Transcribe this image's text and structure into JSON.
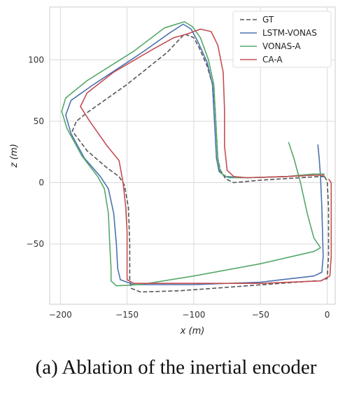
{
  "caption": "(a) Ablation of the inertial encoder",
  "chart_data": {
    "type": "line",
    "xlabel": "x (m)",
    "ylabel": "z (m)",
    "xlim": [
      -208,
      6
    ],
    "ylim": [
      -99,
      143
    ],
    "xticks": [
      -200,
      -150,
      -100,
      -50,
      0
    ],
    "yticks": [
      -50,
      0,
      50,
      100
    ],
    "xtick_labels": [
      "−200",
      "−150",
      "−100",
      "−50",
      "0"
    ],
    "ytick_labels": [
      "−50",
      "0",
      "50",
      "100"
    ],
    "grid": true,
    "legend_position": "top-right",
    "series": [
      {
        "name": "GT",
        "color": "#555555",
        "dash": true,
        "points": [
          [
            -2,
            5
          ],
          [
            0,
            1
          ],
          [
            1,
            -20
          ],
          [
            1,
            -60
          ],
          [
            0,
            -78
          ],
          [
            -5,
            -80
          ],
          [
            -10,
            -80
          ],
          [
            -60,
            -84
          ],
          [
            -110,
            -88
          ],
          [
            -140,
            -89
          ],
          [
            -147,
            -86
          ],
          [
            -148,
            -80
          ],
          [
            -148,
            -50
          ],
          [
            -149,
            -20
          ],
          [
            -152,
            -2
          ],
          [
            -156,
            5
          ],
          [
            -165,
            12
          ],
          [
            -180,
            26
          ],
          [
            -191,
            42
          ],
          [
            -188,
            50
          ],
          [
            -180,
            57
          ],
          [
            -150,
            80
          ],
          [
            -120,
            106
          ],
          [
            -107,
            121
          ],
          [
            -100,
            118
          ],
          [
            -96,
            110
          ],
          [
            -90,
            95
          ],
          [
            -86,
            80
          ],
          [
            -84,
            60
          ],
          [
            -83,
            40
          ],
          [
            -82,
            20
          ],
          [
            -80,
            10
          ],
          [
            -76,
            3
          ],
          [
            -70,
            0
          ],
          [
            -50,
            2
          ],
          [
            -20,
            4
          ],
          [
            -5,
            5
          ],
          [
            -2,
            5
          ]
        ]
      },
      {
        "name": "LSTM-VONAS",
        "color": "#4c72b0",
        "dash": false,
        "points": [
          [
            -7,
            31
          ],
          [
            -6,
            20
          ],
          [
            -5,
            5
          ],
          [
            -4,
            -20
          ],
          [
            -3,
            -60
          ],
          [
            -4,
            -73
          ],
          [
            -10,
            -76
          ],
          [
            -50,
            -81
          ],
          [
            -100,
            -83
          ],
          [
            -145,
            -83
          ],
          [
            -155,
            -79
          ],
          [
            -157,
            -70
          ],
          [
            -158,
            -50
          ],
          [
            -160,
            -25
          ],
          [
            -164,
            -5
          ],
          [
            -170,
            5
          ],
          [
            -182,
            20
          ],
          [
            -192,
            40
          ],
          [
            -196,
            55
          ],
          [
            -192,
            67
          ],
          [
            -175,
            80
          ],
          [
            -140,
            105
          ],
          [
            -118,
            122
          ],
          [
            -108,
            129
          ],
          [
            -102,
            125
          ],
          [
            -97,
            115
          ],
          [
            -90,
            98
          ],
          [
            -86,
            80
          ],
          [
            -85,
            60
          ],
          [
            -84,
            40
          ],
          [
            -83,
            20
          ],
          [
            -81,
            9
          ],
          [
            -76,
            5
          ],
          [
            -60,
            4
          ],
          [
            -30,
            5
          ],
          [
            -10,
            7
          ],
          [
            -3,
            7
          ]
        ]
      },
      {
        "name": "VONAS-A",
        "color": "#55a868",
        "dash": false,
        "points": [
          [
            -29,
            33
          ],
          [
            -25,
            20
          ],
          [
            -20,
            0
          ],
          [
            -15,
            -25
          ],
          [
            -10,
            -45
          ],
          [
            -5,
            -53
          ],
          [
            -10,
            -56
          ],
          [
            -50,
            -66
          ],
          [
            -100,
            -76
          ],
          [
            -140,
            -83
          ],
          [
            -158,
            -84
          ],
          [
            -162,
            -80
          ],
          [
            -162,
            -70
          ],
          [
            -163,
            -50
          ],
          [
            -164,
            -25
          ],
          [
            -167,
            -5
          ],
          [
            -172,
            5
          ],
          [
            -184,
            22
          ],
          [
            -195,
            44
          ],
          [
            -199,
            58
          ],
          [
            -196,
            69
          ],
          [
            -180,
            83
          ],
          [
            -145,
            107
          ],
          [
            -122,
            126
          ],
          [
            -107,
            131
          ],
          [
            -101,
            127
          ],
          [
            -95,
            118
          ],
          [
            -89,
            100
          ],
          [
            -85,
            80
          ],
          [
            -84,
            60
          ],
          [
            -83,
            40
          ],
          [
            -82,
            20
          ],
          [
            -80,
            8
          ],
          [
            -74,
            4
          ],
          [
            -60,
            4
          ],
          [
            -30,
            5
          ],
          [
            -10,
            7
          ],
          [
            -2,
            7
          ]
        ]
      },
      {
        "name": "CA-A",
        "color": "#c44e52",
        "dash": false,
        "points": [
          [
            1,
            3
          ],
          [
            3,
            0
          ],
          [
            3,
            -20
          ],
          [
            3,
            -60
          ],
          [
            2,
            -76
          ],
          [
            -5,
            -80
          ],
          [
            -50,
            -82
          ],
          [
            -100,
            -82
          ],
          [
            -145,
            -82
          ],
          [
            -150,
            -79
          ],
          [
            -150,
            -60
          ],
          [
            -150,
            -40
          ],
          [
            -151,
            -20
          ],
          [
            -153,
            0
          ],
          [
            -156,
            18
          ],
          [
            -165,
            30
          ],
          [
            -178,
            50
          ],
          [
            -185,
            62
          ],
          [
            -180,
            73
          ],
          [
            -160,
            90
          ],
          [
            -130,
            109
          ],
          [
            -115,
            118
          ],
          [
            -105,
            121
          ],
          [
            -95,
            125
          ],
          [
            -87,
            123
          ],
          [
            -82,
            112
          ],
          [
            -78,
            90
          ],
          [
            -77,
            60
          ],
          [
            -77,
            30
          ],
          [
            -75,
            10
          ],
          [
            -70,
            5
          ],
          [
            -60,
            4
          ],
          [
            -30,
            5
          ],
          [
            -10,
            6
          ],
          [
            -2,
            6
          ]
        ]
      }
    ]
  }
}
